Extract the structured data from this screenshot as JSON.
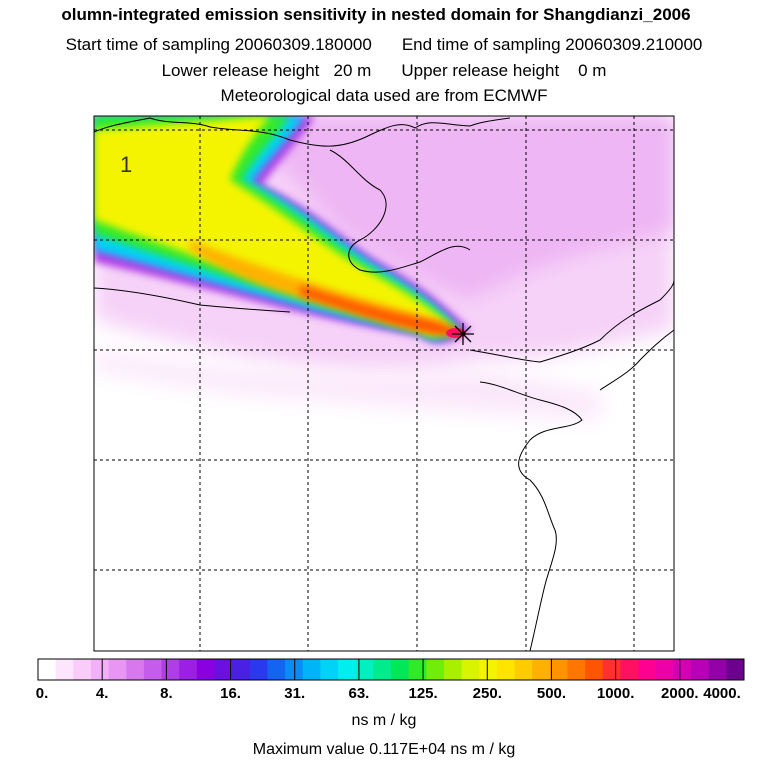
{
  "titles": {
    "main": "olumn-integrated emission sensitivity in nested domain for Shangdianzi_2006",
    "start": "Start time of sampling 20060309.180000",
    "end": "End time of sampling 20060309.210000",
    "lower": "Lower release height   20 m",
    "upper": "Upper release height    0 m",
    "met": "Meteorological data used are from ECMWF"
  },
  "map": {
    "contour_label": "1",
    "release_marker_icon": "release-site-star-icon"
  },
  "colorbar": {
    "labels": [
      "0.",
      "4.",
      "8.",
      "16.",
      "31.",
      "63.",
      "125.",
      "250.",
      "500.",
      "1000.",
      "2000.",
      "4000."
    ],
    "colors": [
      "#ffffff",
      "#fde6fd",
      "#f9ccfa",
      "#f3b0f7",
      "#e995f3",
      "#d878ee",
      "#c55ceb",
      "#b03ee6",
      "#9c1fe3",
      "#8a00e0",
      "#6a10e0",
      "#4a20e4",
      "#2a38ee",
      "#1464f2",
      "#0a8cf5",
      "#00b4f8",
      "#00d2f8",
      "#00eeee",
      "#00f0c0",
      "#00ec8c",
      "#00e858",
      "#30ea2a",
      "#70ee0a",
      "#a8f000",
      "#d8f400",
      "#f4f400",
      "#ffe400",
      "#ffcc00",
      "#ffb000",
      "#ff9400",
      "#ff7600",
      "#ff5400",
      "#ff3030",
      "#ff1060",
      "#ff0090",
      "#ee00a8",
      "#d400b4",
      "#b800b8",
      "#9400a8",
      "#6e0090"
    ],
    "units": "ns m / kg"
  },
  "max_value": "Maximum value  0.117E+04 ns m / kg"
}
